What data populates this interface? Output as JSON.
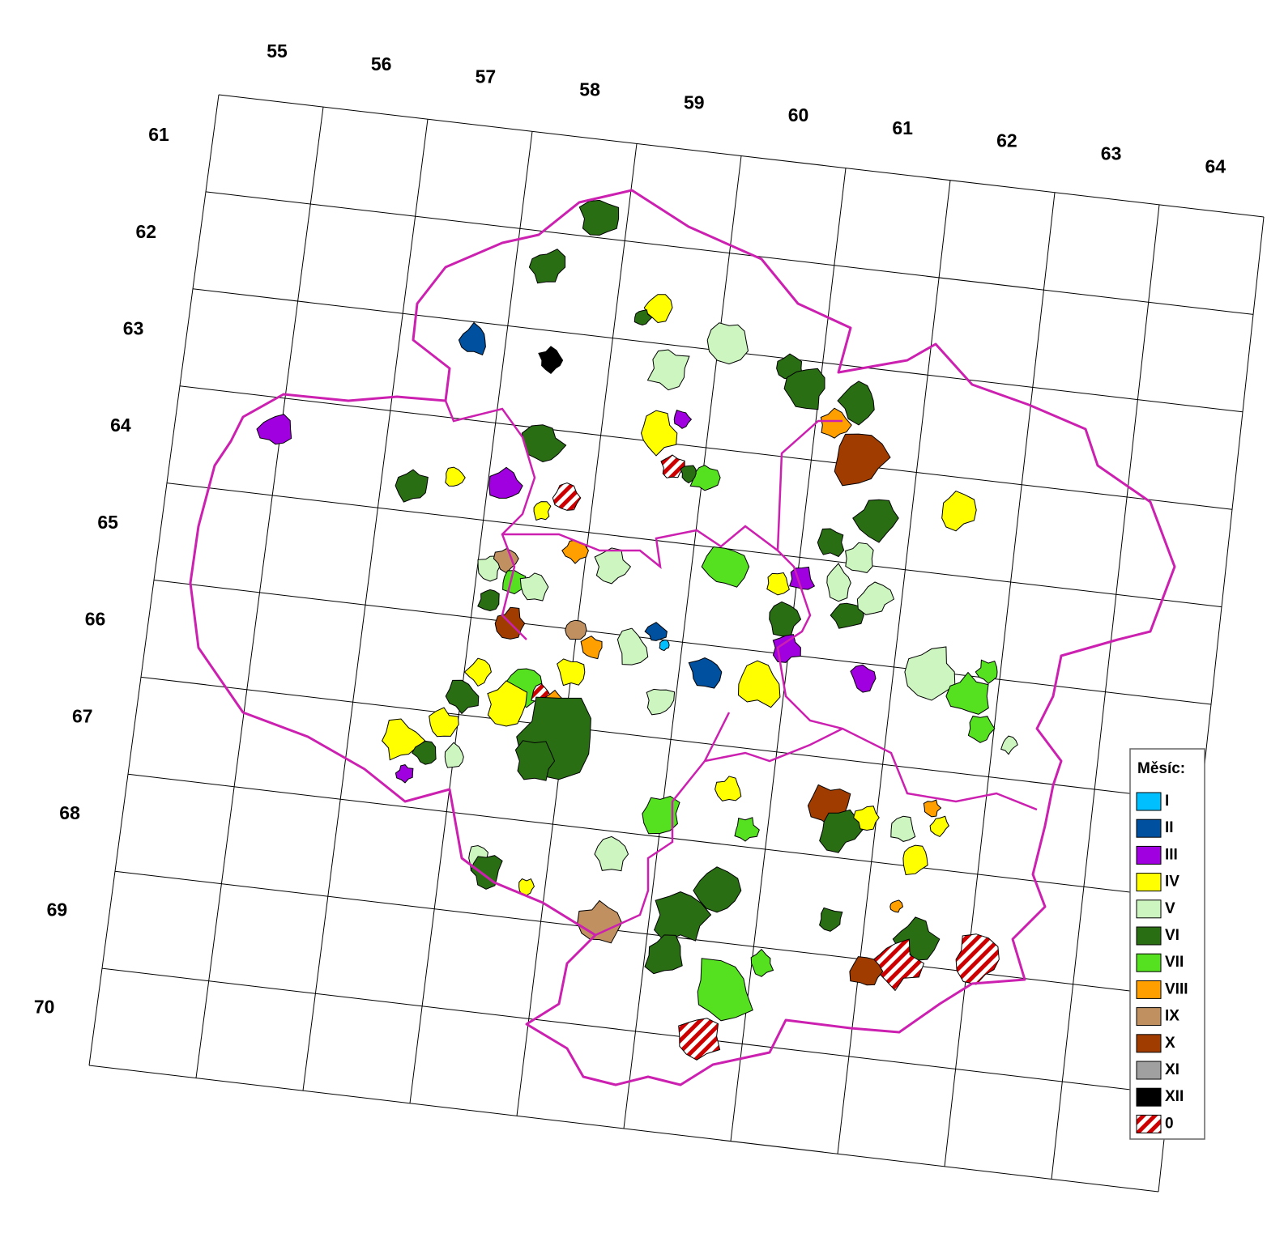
{
  "grid": {
    "columns": [
      "55",
      "56",
      "57",
      "58",
      "59",
      "60",
      "61",
      "62",
      "63",
      "64"
    ],
    "rows": [
      "61",
      "62",
      "63",
      "64",
      "65",
      "66",
      "67",
      "68",
      "69",
      "70"
    ]
  },
  "legend": {
    "title": "Měsíc:",
    "items": [
      {
        "label": "I",
        "color": "#00bfff"
      },
      {
        "label": "II",
        "color": "#0050a0"
      },
      {
        "label": "III",
        "color": "#a000e0"
      },
      {
        "label": "IV",
        "color": "#ffff00"
      },
      {
        "label": "V",
        "color": "#ccf5c0"
      },
      {
        "label": "VI",
        "color": "#2a6e14"
      },
      {
        "label": "VII",
        "color": "#55e020"
      },
      {
        "label": "VIII",
        "color": "#ffa000"
      },
      {
        "label": "IX",
        "color": "#c09060"
      },
      {
        "label": "X",
        "color": "#a03c00"
      },
      {
        "label": "XI",
        "color": "#a0a0a0"
      },
      {
        "label": "XII",
        "color": "#000000"
      },
      {
        "label": "0",
        "color": "#cc0000",
        "hatched": true
      }
    ]
  }
}
